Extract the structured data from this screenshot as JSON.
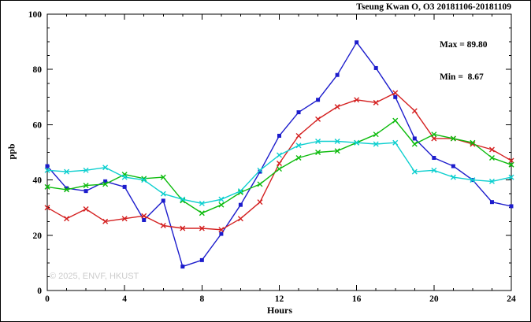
{
  "title": "Tseung Kwan O, O3 20181106-20181109",
  "annotation": {
    "max_label": "Max = 89.80",
    "min_label": "Min =  8.67"
  },
  "watermark": "© 2025, ENVF, HKUST",
  "chart_data": {
    "type": "line",
    "title": "Tseung Kwan O, O3 20181106-20181109",
    "xlabel": "Hours",
    "ylabel": "ppb",
    "xlim": [
      0,
      24
    ],
    "ylim": [
      0,
      100
    ],
    "xticks": [
      0,
      4,
      8,
      12,
      16,
      20,
      24
    ],
    "yticks": [
      0,
      20,
      40,
      60,
      80,
      100
    ],
    "grid": false,
    "legend": "none",
    "stats": {
      "max": 89.8,
      "min": 8.67
    },
    "x": [
      0,
      1,
      2,
      3,
      4,
      5,
      6,
      7,
      8,
      9,
      10,
      11,
      12,
      13,
      14,
      15,
      16,
      17,
      18,
      19,
      20,
      21,
      22,
      23,
      24
    ],
    "series": [
      {
        "name": "series-blue",
        "color": "#1c1ccc",
        "marker": "square",
        "values": [
          45,
          37,
          36,
          39.5,
          37.5,
          25.5,
          32.5,
          8.67,
          11,
          20.5,
          31,
          43,
          56,
          64.5,
          69,
          78,
          89.8,
          80.5,
          70,
          55,
          48,
          45,
          40,
          32,
          30.5
        ]
      },
      {
        "name": "series-red",
        "color": "#d42020",
        "marker": "x",
        "values": [
          30,
          26,
          29.5,
          25,
          26,
          27,
          23.5,
          22.5,
          22.5,
          22,
          26,
          32,
          46,
          56,
          62,
          66.5,
          69,
          68,
          71.5,
          65,
          55,
          55,
          53,
          51,
          47
        ]
      },
      {
        "name": "series-green",
        "color": "#0cbb0c",
        "marker": "x",
        "values": [
          37.5,
          36.5,
          38,
          38.5,
          42,
          40.5,
          41,
          32.5,
          28,
          31,
          35.5,
          38.5,
          44,
          48,
          50,
          50.5,
          53.5,
          56.5,
          61.5,
          53,
          56.5,
          55,
          53.5,
          48,
          45.5
        ]
      },
      {
        "name": "series-cyan",
        "color": "#0ccfcf",
        "marker": "x",
        "values": [
          43.5,
          43,
          43.5,
          44.5,
          41,
          40,
          35,
          33,
          31.5,
          33,
          36,
          43.5,
          49,
          52.5,
          54,
          54,
          53.5,
          53,
          53.5,
          43,
          43.5,
          41,
          40,
          39.5,
          41
        ]
      }
    ]
  }
}
